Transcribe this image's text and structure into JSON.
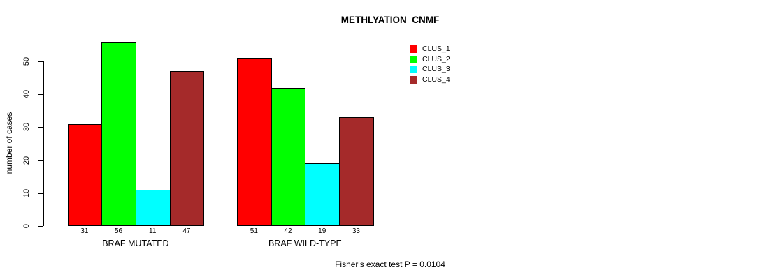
{
  "chart_data": {
    "type": "bar",
    "title": "METHLYATION_CNMF",
    "ylabel": "number of cases",
    "xlabel": "",
    "categories": [
      "BRAF MUTATED",
      "BRAF WILD-TYPE"
    ],
    "series": [
      {
        "name": "CLUS_1",
        "color": "#ff0000",
        "values": [
          31,
          51
        ]
      },
      {
        "name": "CLUS_2",
        "color": "#00ff00",
        "values": [
          56,
          42
        ]
      },
      {
        "name": "CLUS_3",
        "color": "#00ffff",
        "values": [
          11,
          19
        ]
      },
      {
        "name": "CLUS_4",
        "color": "#a52a2a",
        "values": [
          47,
          33
        ]
      }
    ],
    "ylim": [
      0,
      50
    ],
    "yticks": [
      0,
      10,
      20,
      30,
      40,
      50
    ],
    "value_labels_under_bars": true,
    "grid": false,
    "legend_position": "top-right",
    "annotation": "Fisher's exact test P = 0.0104",
    "axis_color": "#000000",
    "background_color": "#ffffff"
  }
}
